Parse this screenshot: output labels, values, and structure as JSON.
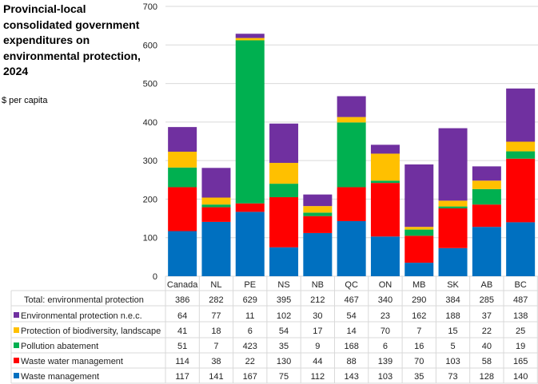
{
  "chart_data": {
    "type": "bar",
    "stacked": true,
    "title": "Provincial-local consolidated government expenditures on environmental protection, 2024",
    "ylabel": "$ per capita",
    "ylim": [
      0,
      700
    ],
    "yticks": [
      0,
      100,
      200,
      300,
      400,
      500,
      600,
      700
    ],
    "grid": true,
    "legend": "data-table-below",
    "categories": [
      "Canada",
      "NL",
      "PE",
      "NS",
      "NB",
      "QC",
      "ON",
      "MB",
      "SK",
      "AB",
      "BC"
    ],
    "total": {
      "name": "Total: environmental protection",
      "values": [
        386,
        282,
        629,
        395,
        212,
        467,
        340,
        290,
        384,
        285,
        487
      ]
    },
    "series": [
      {
        "name": "Waste management",
        "color": "#0070C0",
        "values": [
          117,
          141,
          167,
          75,
          112,
          143,
          103,
          35,
          73,
          128,
          140
        ]
      },
      {
        "name": "Waste water management",
        "color": "#FF0000",
        "values": [
          114,
          38,
          22,
          130,
          44,
          88,
          139,
          70,
          103,
          58,
          165
        ]
      },
      {
        "name": "Pollution abatement",
        "color": "#00B050",
        "values": [
          51,
          7,
          423,
          35,
          9,
          168,
          6,
          16,
          5,
          40,
          19
        ]
      },
      {
        "name": "Protection of biodiversity, landscape",
        "color": "#FFC000",
        "values": [
          41,
          18,
          6,
          54,
          17,
          14,
          70,
          7,
          15,
          22,
          25
        ]
      },
      {
        "name": "Environmental protection n.e.c.",
        "color": "#7030A0",
        "values": [
          64,
          77,
          11,
          102,
          30,
          54,
          23,
          162,
          188,
          37,
          138
        ]
      }
    ]
  }
}
